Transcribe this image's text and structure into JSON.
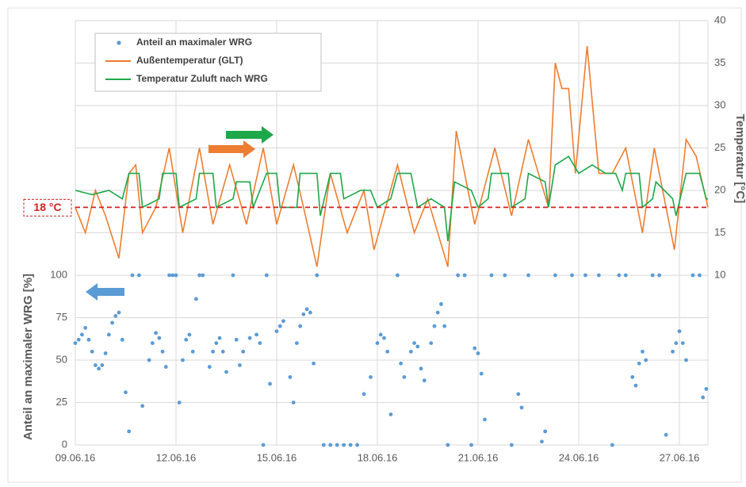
{
  "chart_data": {
    "type": "combo",
    "y_label": "Anteil an maximaler WRG [%]",
    "y2_label": "Temperatur [°C]",
    "xlim": [
      0,
      18.85
    ],
    "xticks": [
      {
        "value": 0,
        "label": "09.06.16"
      },
      {
        "value": 3,
        "label": "12.06.16"
      },
      {
        "value": 6,
        "label": "15.06.16"
      },
      {
        "value": 9,
        "label": "18.06.16"
      },
      {
        "value": 12,
        "label": "21.06.16"
      },
      {
        "value": 15,
        "label": "24.06.16"
      },
      {
        "value": 18,
        "label": "27.06.16"
      }
    ],
    "ylim": [
      0,
      250
    ],
    "yticks": [
      0,
      25,
      50,
      75,
      100
    ],
    "y2lim": [
      -10,
      40
    ],
    "y2ticks": [
      10,
      15,
      20,
      25,
      30,
      35,
      40
    ],
    "grid": true,
    "legend": "upper left",
    "annotations": [
      {
        "text": "18 °C",
        "value": 18,
        "color": "#d62020"
      }
    ],
    "series": [
      {
        "name": "Anteil an maximaler WRG",
        "type": "scatter",
        "color": "#5b9bd5",
        "x": [
          0.0,
          0.1,
          0.2,
          0.3,
          0.4,
          0.5,
          0.6,
          0.7,
          0.8,
          0.9,
          1.0,
          1.1,
          1.2,
          1.3,
          1.4,
          1.5,
          1.6,
          1.7,
          1.9,
          2.0,
          2.2,
          2.3,
          2.4,
          2.5,
          2.6,
          2.7,
          2.8,
          2.9,
          3.0,
          3.1,
          3.2,
          3.3,
          3.4,
          3.5,
          3.6,
          3.7,
          3.8,
          4.0,
          4.1,
          4.2,
          4.3,
          4.4,
          4.5,
          4.7,
          4.8,
          4.9,
          5.0,
          5.2,
          5.4,
          5.5,
          5.6,
          5.7,
          5.8,
          6.0,
          6.1,
          6.2,
          6.4,
          6.5,
          6.6,
          6.7,
          6.8,
          6.9,
          7.0,
          7.1,
          7.2,
          7.4,
          7.6,
          7.8,
          8.0,
          8.2,
          8.4,
          8.6,
          8.8,
          9.0,
          9.1,
          9.2,
          9.3,
          9.4,
          9.6,
          9.7,
          9.8,
          10.0,
          10.1,
          10.2,
          10.3,
          10.4,
          10.6,
          10.7,
          10.8,
          10.9,
          11.0,
          11.1,
          11.4,
          11.6,
          11.8,
          11.9,
          12.0,
          12.1,
          12.2,
          12.4,
          12.8,
          13.0,
          13.2,
          13.3,
          13.5,
          13.9,
          14.0,
          14.3,
          14.8,
          15.2,
          15.6,
          16.0,
          16.2,
          16.4,
          16.6,
          16.7,
          16.8,
          16.9,
          17.0,
          17.2,
          17.4,
          17.6,
          17.8,
          17.9,
          18.0,
          18.1,
          18.2,
          18.4,
          18.6,
          18.7,
          18.8
        ],
        "values": [
          60,
          62,
          65,
          69,
          62,
          55,
          47,
          45,
          47,
          54,
          65,
          72,
          76,
          78,
          62,
          31,
          8,
          100,
          100,
          23,
          50,
          60,
          66,
          63,
          55,
          46,
          100,
          100,
          100,
          25,
          50,
          62,
          65,
          55,
          86,
          100,
          100,
          46,
          55,
          60,
          63,
          55,
          43,
          100,
          62,
          47,
          55,
          63,
          65,
          60,
          0,
          100,
          36,
          67,
          70,
          73,
          40,
          25,
          60,
          70,
          77,
          80,
          78,
          48,
          100,
          0,
          0,
          0,
          0,
          0,
          0,
          30,
          40,
          60,
          65,
          63,
          55,
          18,
          100,
          48,
          40,
          55,
          60,
          58,
          45,
          38,
          60,
          70,
          78,
          83,
          70,
          0,
          100,
          100,
          0,
          57,
          54,
          42,
          15,
          100,
          100,
          0,
          30,
          22,
          100,
          2,
          8,
          100,
          100,
          100,
          100,
          0,
          100,
          100,
          40,
          35,
          48,
          55,
          50,
          100,
          100,
          6,
          55,
          60,
          67,
          60,
          50,
          100,
          100,
          28,
          33
        ]
      },
      {
        "name": "Außentemperatur (GLT)",
        "type": "line",
        "axis": "y2",
        "color": "#ed7d31",
        "x": [
          0,
          0.3,
          0.6,
          0.9,
          1.3,
          1.6,
          1.8,
          2.0,
          2.4,
          2.8,
          3.2,
          3.7,
          4.1,
          4.6,
          5.1,
          5.6,
          6.0,
          6.5,
          6.8,
          7.2,
          7.6,
          8.1,
          8.6,
          8.9,
          9.6,
          10.1,
          10.5,
          11.1,
          11.35,
          11.9,
          12.5,
          13.0,
          13.5,
          14.1,
          14.3,
          14.5,
          14.7,
          14.9,
          15.25,
          15.6,
          16.0,
          16.4,
          16.9,
          17.25,
          17.85,
          18.2,
          18.5,
          18.85
        ],
        "values": [
          18,
          15,
          20,
          17,
          12,
          22,
          23,
          15,
          18,
          25,
          15,
          25,
          16,
          23,
          16,
          25,
          16,
          23,
          18,
          11,
          22,
          15,
          20,
          13,
          23,
          15,
          19,
          11,
          27,
          16,
          25,
          17,
          26,
          18,
          35,
          32,
          32,
          22,
          37,
          22,
          22,
          25,
          15,
          25,
          13,
          26,
          24,
          18
        ]
      },
      {
        "name": "Temperatur Zuluft nach WRG",
        "type": "line",
        "axis": "y2",
        "color": "#1ea84a",
        "x": [
          0,
          0.5,
          1.0,
          1.4,
          1.6,
          1.9,
          2.0,
          2.5,
          2.6,
          3.0,
          3.1,
          3.6,
          3.7,
          4.1,
          4.2,
          4.7,
          4.8,
          5.2,
          5.3,
          5.7,
          6.0,
          6.1,
          6.6,
          6.7,
          7.2,
          7.3,
          7.6,
          7.9,
          8.0,
          8.5,
          8.8,
          9.0,
          9.4,
          9.6,
          10.0,
          10.2,
          10.6,
          11.0,
          11.1,
          11.3,
          11.8,
          12.0,
          12.3,
          12.4,
          12.9,
          13.0,
          13.4,
          13.5,
          14.0,
          14.1,
          14.3,
          14.7,
          15.0,
          15.4,
          15.8,
          16.1,
          16.3,
          16.4,
          16.8,
          16.9,
          17.2,
          17.3,
          17.8,
          17.9,
          18.2,
          18.6,
          18.8,
          18.85
        ],
        "values": [
          20,
          19.5,
          20,
          19,
          22,
          22,
          18,
          19,
          22,
          22,
          18,
          19,
          22,
          22,
          18,
          19,
          21,
          21,
          18,
          22,
          22,
          18,
          18,
          22,
          22,
          17,
          22,
          22,
          19,
          20,
          20,
          18,
          19,
          22,
          22,
          18,
          19,
          18,
          14,
          21,
          20,
          18,
          19,
          22,
          22,
          18,
          19,
          22,
          21,
          18,
          23,
          24,
          22,
          23,
          22,
          22,
          20,
          22,
          22,
          18,
          19,
          21,
          19,
          17,
          22,
          22,
          19,
          19
        ]
      }
    ]
  }
}
